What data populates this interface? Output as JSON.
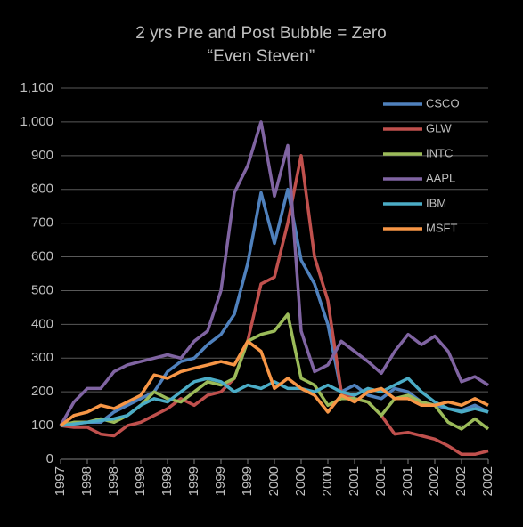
{
  "chart_data": {
    "type": "line",
    "title": "2 yrs Pre and Post Bubble = Zero",
    "subtitle": "“Even Steven”",
    "categories": [
      "1997",
      null,
      "1998",
      null,
      "1998",
      null,
      "1998",
      null,
      "1998",
      null,
      "1999",
      null,
      "1999",
      null,
      "1999",
      null,
      "2000",
      null,
      "2000",
      null,
      "2000",
      null,
      "2001",
      null,
      "2001",
      null,
      "2001",
      null,
      "2002",
      null,
      "2002",
      null,
      "2002"
    ],
    "series": [
      {
        "name": "CSCO",
        "color": "#4f81bd",
        "values": [
          100,
          105,
          110,
          110,
          140,
          160,
          180,
          200,
          260,
          290,
          300,
          340,
          370,
          430,
          580,
          790,
          640,
          800,
          590,
          520,
          400,
          200,
          220,
          190,
          180,
          210,
          200,
          170,
          160,
          150,
          145,
          160,
          140
        ]
      },
      {
        "name": "GLW",
        "color": "#c0504d",
        "values": [
          100,
          95,
          95,
          75,
          70,
          100,
          110,
          130,
          150,
          180,
          160,
          190,
          200,
          240,
          350,
          520,
          540,
          700,
          900,
          600,
          470,
          200,
          180,
          170,
          130,
          75,
          80,
          70,
          60,
          40,
          15,
          15,
          25
        ]
      },
      {
        "name": "INTC",
        "color": "#9bbb59",
        "values": [
          100,
          110,
          110,
          120,
          110,
          130,
          160,
          200,
          180,
          170,
          200,
          230,
          220,
          240,
          350,
          370,
          380,
          430,
          240,
          220,
          160,
          180,
          180,
          170,
          130,
          180,
          190,
          170,
          160,
          110,
          90,
          120,
          90
        ]
      },
      {
        "name": "AAPL",
        "color": "#8064a2",
        "values": [
          100,
          170,
          210,
          210,
          260,
          280,
          290,
          300,
          310,
          300,
          350,
          380,
          500,
          790,
          870,
          1000,
          780,
          930,
          380,
          260,
          280,
          350,
          320,
          290,
          255,
          320,
          370,
          340,
          365,
          320,
          230,
          245,
          220
        ]
      },
      {
        "name": "IBM",
        "color": "#4bacc6",
        "values": [
          100,
          105,
          110,
          115,
          120,
          130,
          160,
          180,
          170,
          200,
          230,
          240,
          230,
          200,
          220,
          210,
          230,
          210,
          210,
          200,
          220,
          200,
          190,
          210,
          200,
          220,
          240,
          200,
          170,
          150,
          140,
          150,
          140
        ]
      },
      {
        "name": "MSFT",
        "color": "#f79646",
        "values": [
          100,
          130,
          140,
          160,
          150,
          170,
          190,
          250,
          240,
          260,
          270,
          280,
          290,
          280,
          350,
          320,
          210,
          240,
          210,
          190,
          140,
          190,
          170,
          200,
          210,
          180,
          180,
          160,
          160,
          170,
          160,
          180,
          160
        ]
      }
    ],
    "ylim": [
      0,
      1100
    ],
    "yticks": [
      0,
      100,
      200,
      300,
      400,
      500,
      600,
      700,
      800,
      900,
      {
        "value": 1000,
        "label": "1,000"
      },
      {
        "value": 1100,
        "label": "1,100"
      }
    ],
    "grid": true
  }
}
